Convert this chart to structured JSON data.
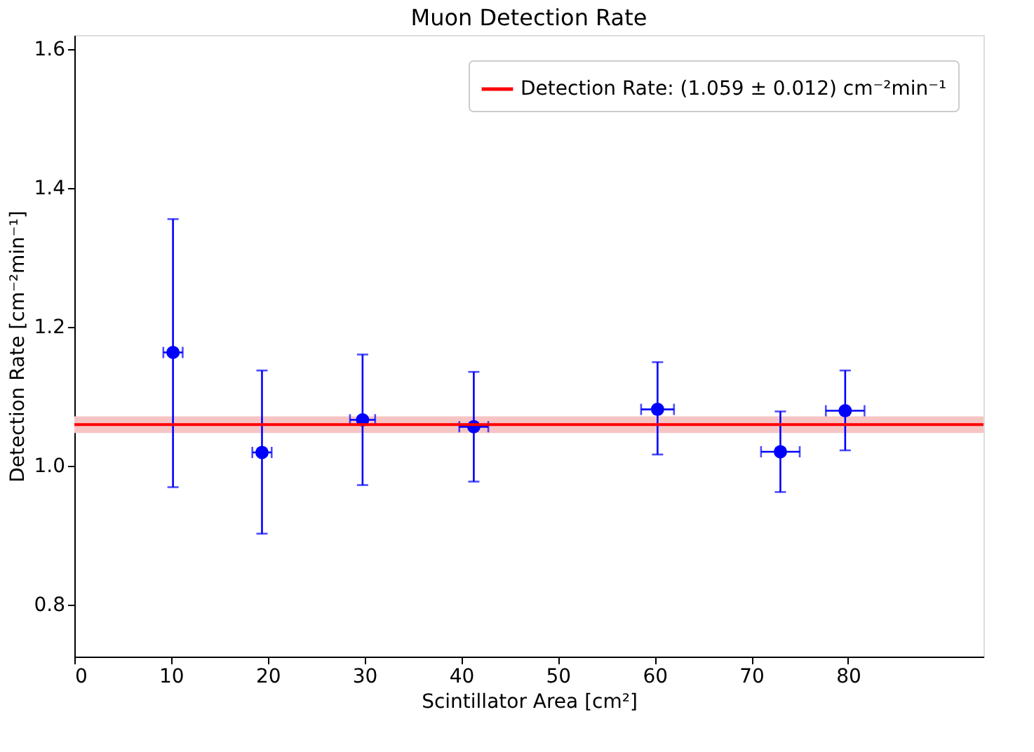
{
  "chart_data": {
    "type": "scatter",
    "title": "Muon Detection Rate",
    "xlabel": "Scintillator Area [cm²]",
    "ylabel": "Detection Rate [cm⁻²min⁻¹]",
    "x": [
      10.2,
      19.4,
      29.8,
      41.3,
      60.3,
      73.0,
      79.7
    ],
    "series": [
      {
        "color": "#0000ff",
        "values": [
          1.163,
          1.019,
          1.066,
          1.056,
          1.081,
          1.02,
          1.079
        ],
        "errors": [
          [
            0.969,
            1.355
          ],
          [
            0.902,
            1.137
          ],
          [
            0.972,
            1.16
          ],
          [
            0.977,
            1.135
          ],
          [
            1.016,
            1.149
          ],
          [
            0.962,
            1.078
          ],
          [
            1.022,
            1.137
          ]
        ],
        "xerrors": [
          1.0,
          1.0,
          1.3,
          1.5,
          1.7,
          2.0,
          2.0
        ]
      }
    ],
    "marker": "circle",
    "ref_lines": [
      {
        "axis": "y",
        "value": 1.059,
        "label": "Detection Rate: (1.059 ± 0.012) cm⁻²min⁻¹",
        "color": "#ff0000"
      }
    ],
    "bands": [
      {
        "axis": "y",
        "from": 1.047,
        "to": 1.071,
        "color": "#f7c4c4"
      }
    ],
    "xlim": [
      0,
      94
    ],
    "xticks": [
      0,
      10,
      20,
      30,
      40,
      50,
      60,
      70,
      80
    ],
    "ylim": [
      0.725,
      1.62
    ],
    "yticks": [
      0.8,
      {
        "value": 1.0,
        "label": "1.0"
      },
      1.2,
      1.4,
      1.6
    ],
    "grid": false,
    "legend": "top right"
  }
}
